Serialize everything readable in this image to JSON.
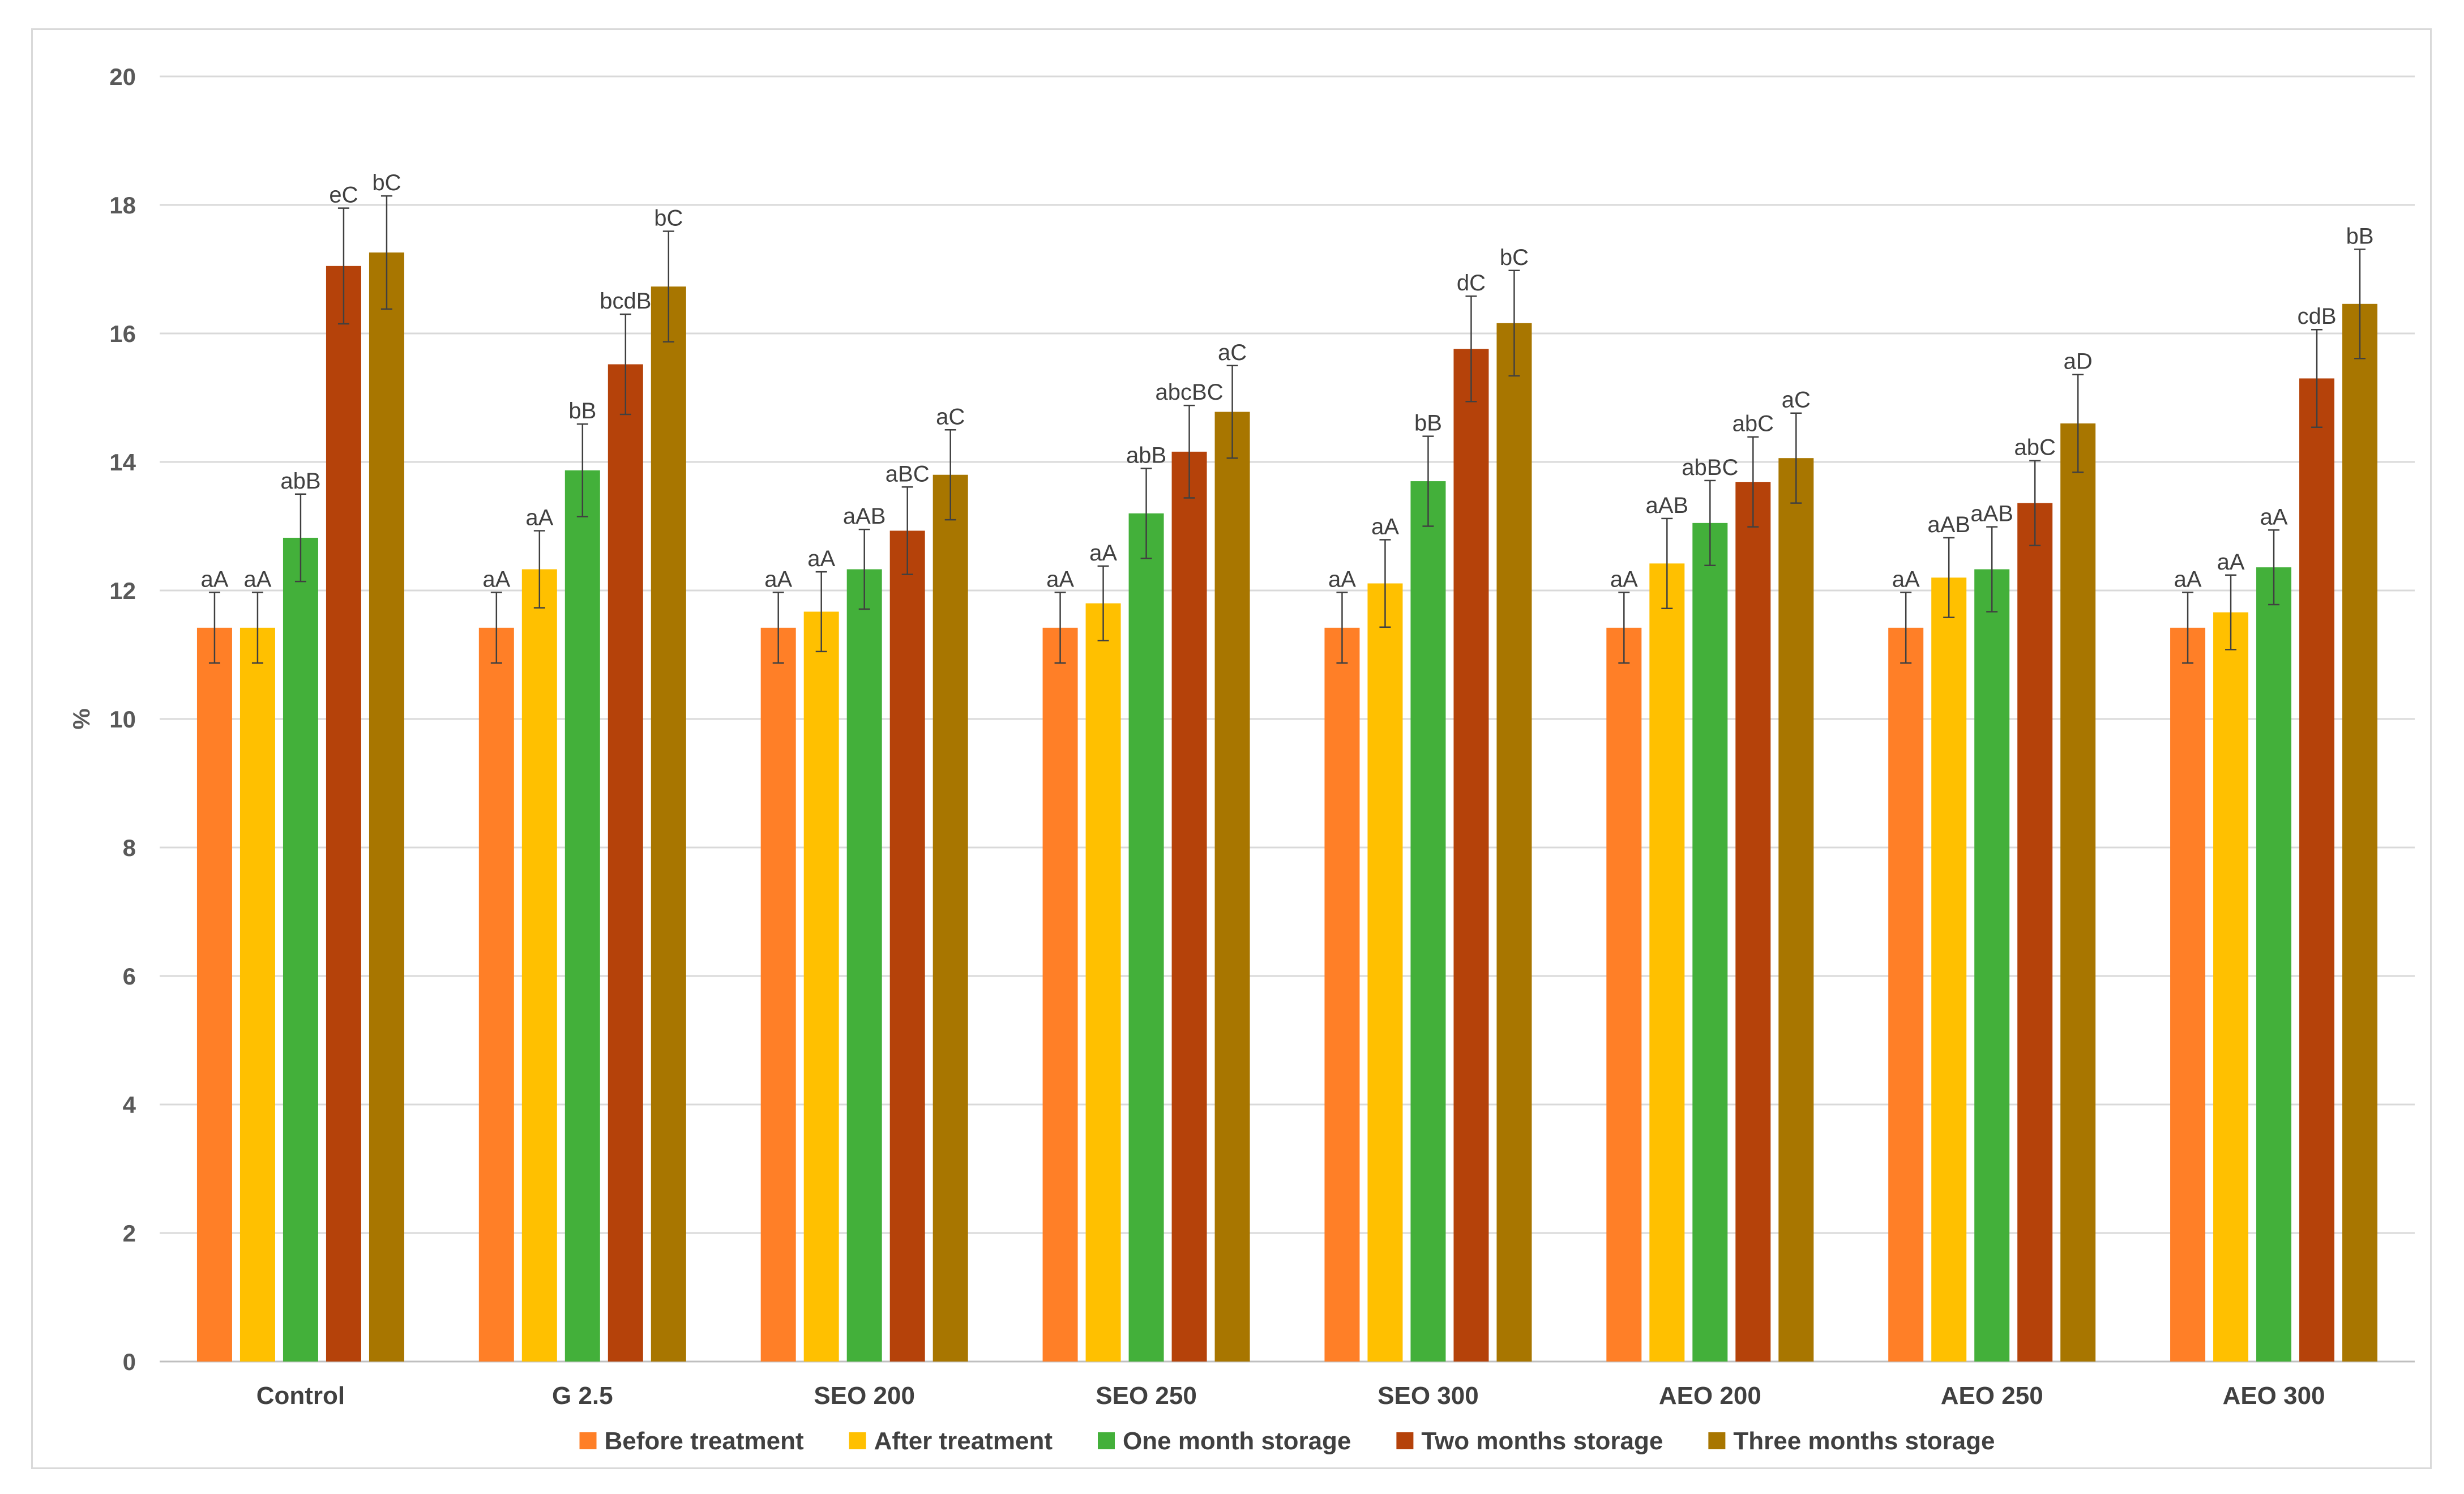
{
  "chart_data": {
    "type": "bar",
    "title": "",
    "xlabel": "",
    "ylabel": "%",
    "ylim": [
      0,
      20
    ],
    "yticks": [
      0,
      2,
      4,
      6,
      8,
      10,
      12,
      14,
      16,
      18,
      20
    ],
    "grid": true,
    "legend_position": "bottom",
    "categories": [
      "Control",
      "G 2.5",
      "SEO 200",
      "SEO 250",
      "SEO 300",
      "AEO 200",
      "AEO 250",
      "AEO 300"
    ],
    "series": [
      {
        "name": "Before treatment",
        "color": "#FF7F27",
        "values": [
          11.42,
          11.42,
          11.42,
          11.42,
          11.42,
          11.42,
          11.42,
          11.42
        ],
        "errors": [
          0.55,
          0.55,
          0.55,
          0.55,
          0.55,
          0.55,
          0.55,
          0.55
        ],
        "labels": [
          "aA",
          "aA",
          "aA",
          "aA",
          "aA",
          "aA",
          "aA",
          "aA"
        ]
      },
      {
        "name": "After treatment",
        "color": "#FFC000",
        "values": [
          11.42,
          12.33,
          11.67,
          11.8,
          12.11,
          12.42,
          12.2,
          11.66
        ],
        "errors": [
          0.55,
          0.6,
          0.62,
          0.58,
          0.68,
          0.7,
          0.62,
          0.58
        ],
        "labels": [
          "aA",
          "aA",
          "aA",
          "aA",
          "aA",
          "aAB",
          "aAB",
          "aA"
        ]
      },
      {
        "name": "One month storage",
        "color": "#43B03A",
        "values": [
          12.82,
          13.87,
          12.33,
          13.2,
          13.7,
          13.05,
          12.33,
          12.36
        ],
        "errors": [
          0.68,
          0.72,
          0.62,
          0.7,
          0.7,
          0.66,
          0.66,
          0.58
        ],
        "labels": [
          "abB",
          "bB",
          "aAB",
          "abB",
          "bB",
          "abBC",
          "aAB",
          "aA"
        ]
      },
      {
        "name": "Two months storage",
        "color": "#B5420A",
        "values": [
          17.05,
          15.52,
          12.93,
          14.16,
          15.76,
          13.69,
          13.36,
          15.3
        ],
        "errors": [
          0.9,
          0.78,
          0.68,
          0.72,
          0.82,
          0.7,
          0.66,
          0.76
        ],
        "labels": [
          "eC",
          "bcdB",
          "aBC",
          "abcBC",
          "dC",
          "abC",
          "abC",
          "cdB"
        ]
      },
      {
        "name": "Three months storage",
        "color": "#A87600",
        "values": [
          17.26,
          16.73,
          13.8,
          14.78,
          16.16,
          14.06,
          14.6,
          16.46
        ],
        "errors": [
          0.88,
          0.86,
          0.7,
          0.72,
          0.82,
          0.7,
          0.76,
          0.85
        ],
        "labels": [
          "bC",
          "bC",
          "aC",
          "aC",
          "bC",
          "aC",
          "aD",
          "bB"
        ]
      }
    ]
  }
}
